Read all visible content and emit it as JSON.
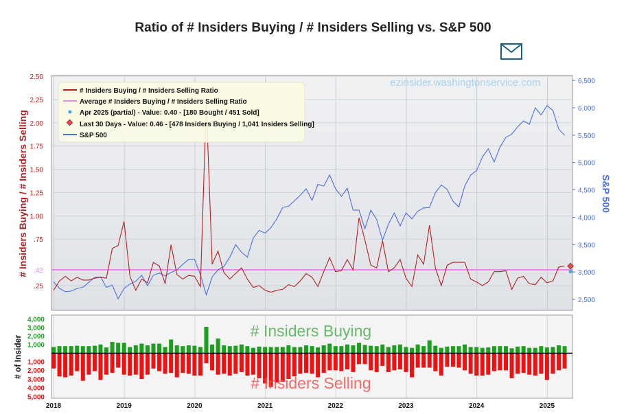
{
  "title": "Ratio of # Insiders Buying / # Insiders Selling vs. S&P 500",
  "watermark": "ezinsider.washingtonservice.com",
  "mail_icon": "envelope-icon",
  "colors": {
    "ratio": "#b22222",
    "average": "#e08ce0",
    "sp500": "#4a6fe0",
    "buying": "#1e9e1e",
    "selling": "#ee1111",
    "buying_label": "#4caf50",
    "selling_label": "#ef5350",
    "left_axis": "#b22222",
    "right_axis": "#4a6fe0"
  },
  "chart_data": [
    {
      "type": "line",
      "title": "Ratio of # Insiders Buying / # Insiders Selling vs. S&P 500",
      "ylabel_left": "# Insiders Buying / # Insiders Selling",
      "ylabel_right": "S&P 500",
      "x_ticks": [
        "2018",
        "2019",
        "2020",
        "2021",
        "2022",
        "2023",
        "2024",
        "2025"
      ],
      "left_ticks": [
        {
          "value": 2.5,
          "label": "2.50"
        },
        {
          "value": 2.25,
          "label": "2.25"
        },
        {
          "value": 2.0,
          "label": "2.00"
        },
        {
          "value": 1.75,
          "label": "1.75"
        },
        {
          "value": 1.5,
          "label": "1.50"
        },
        {
          "value": 1.25,
          "label": "1.25"
        },
        {
          "value": 1.0,
          "label": "1.00"
        },
        {
          "value": 0.75,
          "label": ".75"
        },
        {
          "value": 0.42,
          "label": ".42"
        },
        {
          "value": 0.25,
          "label": ".25"
        }
      ],
      "right_ticks": [
        {
          "value": 6500,
          "label": "6,500"
        },
        {
          "value": 6000,
          "label": "6,000"
        },
        {
          "value": 5500,
          "label": "5,500"
        },
        {
          "value": 5000,
          "label": "5,000"
        },
        {
          "value": 4500,
          "label": "4,500"
        },
        {
          "value": 4000,
          "label": "4,000"
        },
        {
          "value": 3500,
          "label": "3,500"
        },
        {
          "value": 3000,
          "label": "3,000"
        },
        {
          "value": 2500,
          "label": "2,500"
        }
      ],
      "average_ratio": 0.42,
      "ylim_left": [
        0.1,
        2.5
      ],
      "legend": [
        "# Insiders Buying / # Insiders Selling Ratio",
        "Average # Insiders Buying / # Insiders Selling Ratio",
        "Apr 2025 (partial) - Value: 0.40 - [180 Bought / 451 Sold]",
        "Last 30 Days - Value: 0.46 - [478 Insiders Buying / 1,041 Insiders Selling]",
        "S&P 500"
      ],
      "start_year": 2018,
      "ratio_series": [
        0.2,
        0.3,
        0.35,
        0.3,
        0.34,
        0.31,
        0.31,
        0.33,
        0.34,
        0.33,
        0.65,
        0.68,
        0.94,
        0.35,
        0.2,
        0.32,
        0.28,
        0.5,
        0.46,
        0.27,
        0.69,
        0.37,
        0.32,
        0.36,
        0.35,
        0.24,
        2.22,
        0.48,
        0.62,
        0.39,
        0.32,
        0.38,
        0.44,
        0.32,
        0.23,
        0.25,
        0.2,
        0.18,
        0.2,
        0.21,
        0.26,
        0.24,
        0.3,
        0.38,
        0.34,
        0.24,
        0.4,
        0.55,
        0.4,
        0.41,
        0.53,
        0.42,
        0.98,
        0.74,
        0.47,
        0.44,
        0.73,
        0.4,
        0.44,
        0.53,
        0.33,
        0.24,
        0.58,
        0.48,
        0.9,
        0.44,
        0.25,
        0.47,
        0.5,
        0.5,
        0.5,
        0.32,
        0.29,
        0.25,
        0.29,
        0.4,
        0.4,
        0.41,
        0.21,
        0.33,
        0.35,
        0.27,
        0.26,
        0.34,
        0.28,
        0.3,
        0.45,
        0.46
      ],
      "ratio_last30": 0.46,
      "ratio_apr2025": 0.4,
      "sp500_series": [
        2820,
        2700,
        2640,
        2650,
        2700,
        2720,
        2810,
        2900,
        2910,
        2720,
        2760,
        2510,
        2700,
        2780,
        2830,
        2940,
        2750,
        2940,
        2980,
        2930,
        2990,
        3040,
        3140,
        3230,
        3230,
        2950,
        2580,
        2910,
        3040,
        3100,
        3270,
        3500,
        3360,
        3270,
        3620,
        3760,
        3710,
        3810,
        3970,
        4180,
        4200,
        4300,
        4400,
        4520,
        4310,
        4600,
        4570,
        4770,
        4520,
        4380,
        4530,
        4130,
        4130,
        3790,
        4130,
        3960,
        3580,
        3870,
        4080,
        3840,
        4080,
        3970,
        4110,
        4170,
        4180,
        4450,
        4590,
        4510,
        4290,
        4190,
        4570,
        4770,
        4850,
        5100,
        5250,
        5010,
        5280,
        5460,
        5520,
        5650,
        5760,
        5700,
        6000,
        5870,
        6040,
        5950,
        5610,
        5500
      ],
      "sp500_apr2025": 5500
    },
    {
      "type": "bar",
      "title": "# Insiders Buying / # Insiders Selling",
      "ylabel": "# of Insider",
      "label_top": "# Insiders Buying",
      "label_bottom": "# Insiders Selling",
      "ticks_top": [
        {
          "value": 4000,
          "label": "4,000"
        },
        {
          "value": 3000,
          "label": "3,000"
        },
        {
          "value": 2000,
          "label": "2,000"
        },
        {
          "value": 1000,
          "label": "1,000"
        }
      ],
      "ticks_bottom": [
        {
          "value": 1000,
          "label": "1,000"
        },
        {
          "value": 2000,
          "label": "2,000"
        },
        {
          "value": 3000,
          "label": "3,000"
        },
        {
          "value": 4000,
          "label": "4,000"
        },
        {
          "value": 5000,
          "label": "5,000"
        }
      ],
      "buying": [
        700,
        800,
        800,
        800,
        850,
        800,
        800,
        850,
        1000,
        650,
        1300,
        1200,
        1200,
        700,
        900,
        1100,
        900,
        1100,
        1100,
        700,
        1600,
        900,
        800,
        900,
        850,
        700,
        3100,
        1000,
        1700,
        900,
        800,
        850,
        1000,
        800,
        600,
        750,
        700,
        700,
        700,
        700,
        900,
        700,
        700,
        900,
        800,
        650,
        900,
        1100,
        800,
        800,
        1000,
        900,
        1200,
        950,
        850,
        800,
        1000,
        700,
        900,
        1000,
        700,
        600,
        1000,
        800,
        1500,
        850,
        600,
        750,
        800,
        800,
        1000,
        700,
        700,
        600,
        650,
        800,
        800,
        800,
        550,
        750,
        800,
        600,
        600,
        800,
        650,
        700,
        900,
        800
      ],
      "selling": [
        1700,
        2600,
        2700,
        2500,
        2000,
        3100,
        2400,
        2000,
        3000,
        2400,
        2200,
        1600,
        2400,
        2500,
        2400,
        2900,
        2400,
        1700,
        2000,
        2300,
        2200,
        2700,
        2200,
        2300,
        2500,
        2500,
        1100,
        1900,
        2400,
        2300,
        2500,
        2300,
        2100,
        2500,
        2400,
        2800,
        3400,
        3800,
        3300,
        3200,
        2900,
        2600,
        2300,
        2200,
        2300,
        2700,
        2200,
        1900,
        1900,
        2000,
        1800,
        2100,
        1200,
        1200,
        1900,
        2100,
        1400,
        2100,
        1900,
        1800,
        2100,
        2700,
        1600,
        1600,
        1600,
        2000,
        2500,
        1500,
        1500,
        1600,
        1900,
        2300,
        2500,
        2500,
        2400,
        2000,
        1900,
        1900,
        2800,
        2300,
        2200,
        2400,
        2500,
        2300,
        3000,
        2300,
        1900,
        1700
      ]
    }
  ]
}
